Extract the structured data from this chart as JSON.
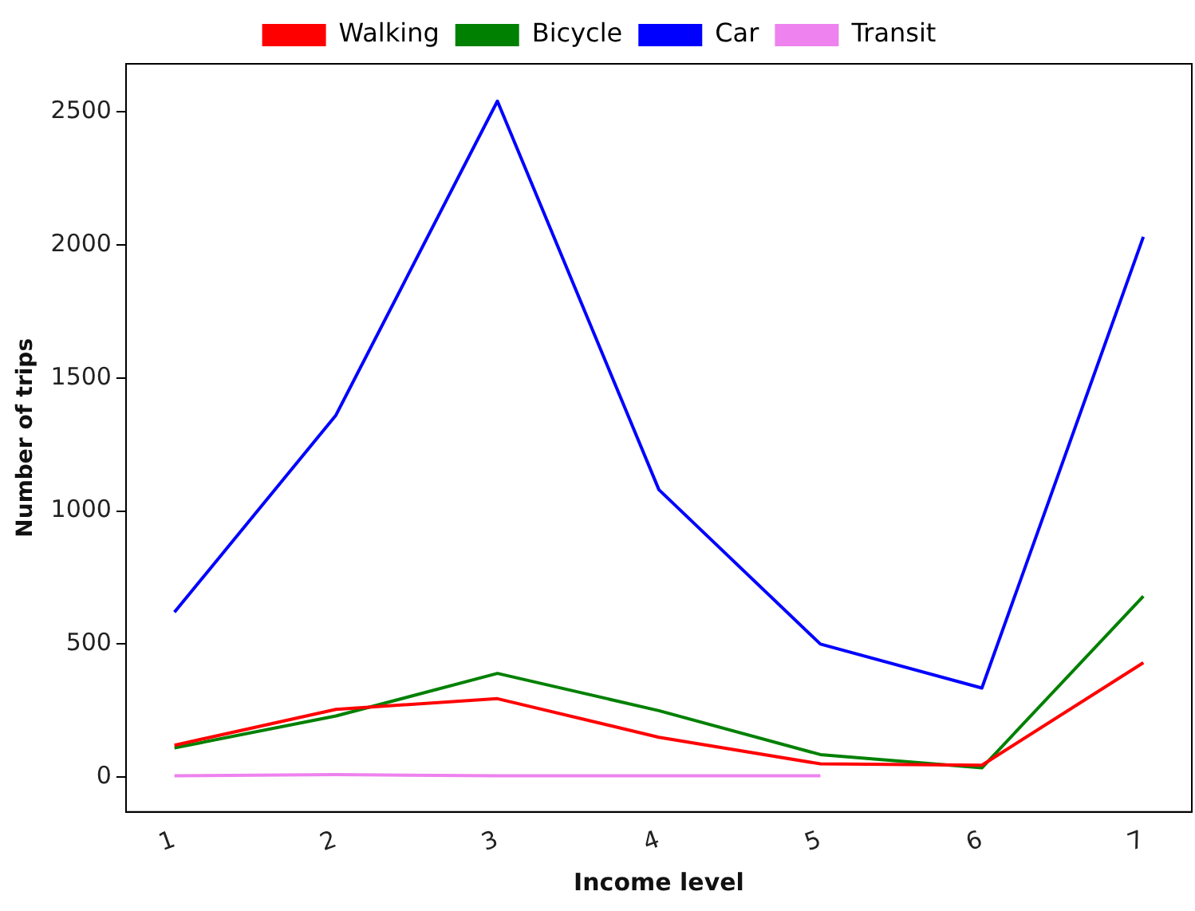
{
  "chart_data": {
    "type": "line",
    "xlabel": "Income level",
    "ylabel": "Number of trips",
    "x": [
      1,
      2,
      3,
      4,
      5,
      6,
      7
    ],
    "series": [
      {
        "name": "Walking",
        "color": "#ff0000",
        "values": [
          120,
          255,
          295,
          150,
          50,
          45,
          430
        ]
      },
      {
        "name": "Bicycle",
        "color": "#008000",
        "values": [
          110,
          230,
          390,
          250,
          85,
          35,
          680
        ]
      },
      {
        "name": "Car",
        "color": "#0000ff",
        "values": [
          620,
          1360,
          2540,
          1080,
          500,
          335,
          2030
        ]
      },
      {
        "name": "Transit",
        "color": "#ee82ee",
        "values": [
          5,
          10,
          5,
          5,
          5,
          null,
          null
        ]
      }
    ],
    "xlim": [
      0.7,
      7.3
    ],
    "xticks": [
      1,
      2,
      3,
      4,
      5,
      6,
      7
    ],
    "ylim": [
      -130,
      2680
    ],
    "yticks": [
      0,
      500,
      1000,
      1500,
      2000,
      2500
    ],
    "grid": false,
    "legend": "top",
    "marker": "none",
    "line_style": "solid"
  }
}
